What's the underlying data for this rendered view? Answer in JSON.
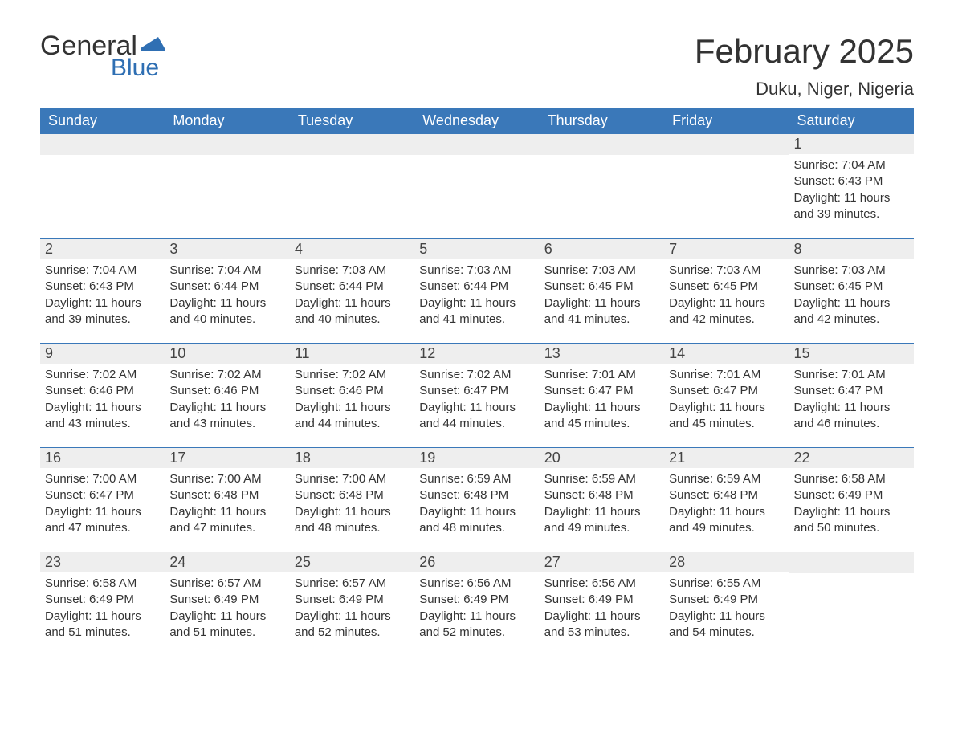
{
  "logo": {
    "part1": "General",
    "part2": "Blue"
  },
  "title": "February 2025",
  "location": "Duku, Niger, Nigeria",
  "weekday_headers": [
    "Sunday",
    "Monday",
    "Tuesday",
    "Wednesday",
    "Thursday",
    "Friday",
    "Saturday"
  ],
  "colors": {
    "header_bg": "#3a78b9",
    "header_text": "#ffffff",
    "daynum_bg": "#eeeeee",
    "row_border": "#3a78b9",
    "text": "#333333",
    "logo_blue": "#2f6fb3"
  },
  "typography": {
    "title_fontsize": 42,
    "location_fontsize": 22,
    "weekday_fontsize": 18,
    "daynum_fontsize": 18,
    "body_fontsize": 15
  },
  "calendar": {
    "type": "table",
    "columns": 7,
    "rows": 5,
    "first_weekday_index": 6,
    "days": [
      {
        "n": 1,
        "sunrise": "7:04 AM",
        "sunset": "6:43 PM",
        "daylight": "11 hours and 39 minutes."
      },
      {
        "n": 2,
        "sunrise": "7:04 AM",
        "sunset": "6:43 PM",
        "daylight": "11 hours and 39 minutes."
      },
      {
        "n": 3,
        "sunrise": "7:04 AM",
        "sunset": "6:44 PM",
        "daylight": "11 hours and 40 minutes."
      },
      {
        "n": 4,
        "sunrise": "7:03 AM",
        "sunset": "6:44 PM",
        "daylight": "11 hours and 40 minutes."
      },
      {
        "n": 5,
        "sunrise": "7:03 AM",
        "sunset": "6:44 PM",
        "daylight": "11 hours and 41 minutes."
      },
      {
        "n": 6,
        "sunrise": "7:03 AM",
        "sunset": "6:45 PM",
        "daylight": "11 hours and 41 minutes."
      },
      {
        "n": 7,
        "sunrise": "7:03 AM",
        "sunset": "6:45 PM",
        "daylight": "11 hours and 42 minutes."
      },
      {
        "n": 8,
        "sunrise": "7:03 AM",
        "sunset": "6:45 PM",
        "daylight": "11 hours and 42 minutes."
      },
      {
        "n": 9,
        "sunrise": "7:02 AM",
        "sunset": "6:46 PM",
        "daylight": "11 hours and 43 minutes."
      },
      {
        "n": 10,
        "sunrise": "7:02 AM",
        "sunset": "6:46 PM",
        "daylight": "11 hours and 43 minutes."
      },
      {
        "n": 11,
        "sunrise": "7:02 AM",
        "sunset": "6:46 PM",
        "daylight": "11 hours and 44 minutes."
      },
      {
        "n": 12,
        "sunrise": "7:02 AM",
        "sunset": "6:47 PM",
        "daylight": "11 hours and 44 minutes."
      },
      {
        "n": 13,
        "sunrise": "7:01 AM",
        "sunset": "6:47 PM",
        "daylight": "11 hours and 45 minutes."
      },
      {
        "n": 14,
        "sunrise": "7:01 AM",
        "sunset": "6:47 PM",
        "daylight": "11 hours and 45 minutes."
      },
      {
        "n": 15,
        "sunrise": "7:01 AM",
        "sunset": "6:47 PM",
        "daylight": "11 hours and 46 minutes."
      },
      {
        "n": 16,
        "sunrise": "7:00 AM",
        "sunset": "6:47 PM",
        "daylight": "11 hours and 47 minutes."
      },
      {
        "n": 17,
        "sunrise": "7:00 AM",
        "sunset": "6:48 PM",
        "daylight": "11 hours and 47 minutes."
      },
      {
        "n": 18,
        "sunrise": "7:00 AM",
        "sunset": "6:48 PM",
        "daylight": "11 hours and 48 minutes."
      },
      {
        "n": 19,
        "sunrise": "6:59 AM",
        "sunset": "6:48 PM",
        "daylight": "11 hours and 48 minutes."
      },
      {
        "n": 20,
        "sunrise": "6:59 AM",
        "sunset": "6:48 PM",
        "daylight": "11 hours and 49 minutes."
      },
      {
        "n": 21,
        "sunrise": "6:59 AM",
        "sunset": "6:48 PM",
        "daylight": "11 hours and 49 minutes."
      },
      {
        "n": 22,
        "sunrise": "6:58 AM",
        "sunset": "6:49 PM",
        "daylight": "11 hours and 50 minutes."
      },
      {
        "n": 23,
        "sunrise": "6:58 AM",
        "sunset": "6:49 PM",
        "daylight": "11 hours and 51 minutes."
      },
      {
        "n": 24,
        "sunrise": "6:57 AM",
        "sunset": "6:49 PM",
        "daylight": "11 hours and 51 minutes."
      },
      {
        "n": 25,
        "sunrise": "6:57 AM",
        "sunset": "6:49 PM",
        "daylight": "11 hours and 52 minutes."
      },
      {
        "n": 26,
        "sunrise": "6:56 AM",
        "sunset": "6:49 PM",
        "daylight": "11 hours and 52 minutes."
      },
      {
        "n": 27,
        "sunrise": "6:56 AM",
        "sunset": "6:49 PM",
        "daylight": "11 hours and 53 minutes."
      },
      {
        "n": 28,
        "sunrise": "6:55 AM",
        "sunset": "6:49 PM",
        "daylight": "11 hours and 54 minutes."
      }
    ]
  },
  "labels": {
    "sunrise_prefix": "Sunrise: ",
    "sunset_prefix": "Sunset: ",
    "daylight_prefix": "Daylight: "
  }
}
